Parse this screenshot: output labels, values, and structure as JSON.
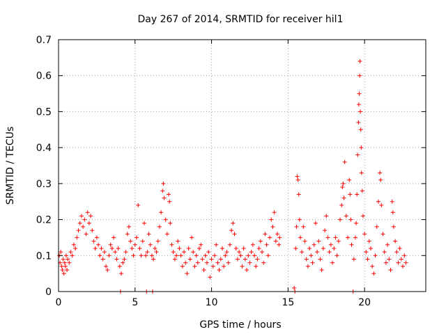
{
  "chart_data": {
    "type": "scatter",
    "title": "Day 267 of 2014, SRMTID for receiver hil1",
    "xlabel": "GPS time / hours",
    "ylabel": "SRMTID / TECUs",
    "xlim": [
      0,
      24
    ],
    "ylim": [
      0,
      0.7
    ],
    "xticks": [
      0,
      5,
      10,
      15,
      20
    ],
    "xtick_labels": [
      "0",
      "5",
      "10",
      "15",
      "20"
    ],
    "yticks": [
      0,
      0.1,
      0.2,
      0.3,
      0.4,
      0.5,
      0.6,
      0.7
    ],
    "ytick_labels": [
      "0",
      "0.1",
      "0.2",
      "0.3",
      "0.4",
      "0.5",
      "0.6",
      "0.7"
    ],
    "grid": true,
    "marker": "+",
    "series": [
      {
        "name": "SRMTID",
        "color": "#ff0000",
        "points": [
          [
            0.05,
            0.1
          ],
          [
            0.1,
            0.08
          ],
          [
            0.15,
            0.11
          ],
          [
            0.2,
            0.07
          ],
          [
            0.25,
            0.06
          ],
          [
            0.3,
            0.09
          ],
          [
            0.35,
            0.05
          ],
          [
            0.4,
            0.08
          ],
          [
            0.45,
            0.07
          ],
          [
            0.5,
            0.1
          ],
          [
            0.55,
            0.06
          ],
          [
            0.6,
            0.09
          ],
          [
            0.7,
            0.08
          ],
          [
            0.8,
            0.11
          ],
          [
            0.9,
            0.1
          ],
          [
            1.0,
            0.13
          ],
          [
            1.1,
            0.12
          ],
          [
            1.2,
            0.15
          ],
          [
            1.3,
            0.17
          ],
          [
            1.4,
            0.19
          ],
          [
            1.5,
            0.21
          ],
          [
            1.6,
            0.18
          ],
          [
            1.7,
            0.2
          ],
          [
            1.8,
            0.16
          ],
          [
            1.9,
            0.22
          ],
          [
            2.0,
            0.19
          ],
          [
            2.1,
            0.21
          ],
          [
            2.2,
            0.17
          ],
          [
            2.3,
            0.14
          ],
          [
            2.4,
            0.12
          ],
          [
            2.5,
            0.15
          ],
          [
            2.6,
            0.13
          ],
          [
            2.7,
            0.1
          ],
          [
            2.8,
            0.12
          ],
          [
            2.9,
            0.09
          ],
          [
            3.0,
            0.11
          ],
          [
            3.1,
            0.07
          ],
          [
            3.2,
            0.06
          ],
          [
            3.3,
            0.1
          ],
          [
            3.4,
            0.13
          ],
          [
            3.5,
            0.12
          ],
          [
            3.6,
            0.15
          ],
          [
            3.7,
            0.11
          ],
          [
            3.8,
            0.09
          ],
          [
            3.9,
            0.12
          ],
          [
            4.0,
            0.07
          ],
          [
            4.05,
            0.0
          ],
          [
            4.1,
            0.05
          ],
          [
            4.2,
            0.08
          ],
          [
            4.3,
            0.09
          ],
          [
            4.4,
            0.11
          ],
          [
            4.5,
            0.16
          ],
          [
            4.6,
            0.18
          ],
          [
            4.7,
            0.14
          ],
          [
            4.8,
            0.12
          ],
          [
            4.9,
            0.1
          ],
          [
            5.0,
            0.13
          ],
          [
            5.1,
            0.15
          ],
          [
            5.2,
            0.24
          ],
          [
            5.3,
            0.12
          ],
          [
            5.4,
            0.1
          ],
          [
            5.5,
            0.14
          ],
          [
            5.6,
            0.19
          ],
          [
            5.7,
            0.1
          ],
          [
            5.75,
            0.0
          ],
          [
            5.8,
            0.11
          ],
          [
            5.9,
            0.16
          ],
          [
            6.0,
            0.13
          ],
          [
            6.1,
            0.1
          ],
          [
            6.15,
            0.0
          ],
          [
            6.2,
            0.09
          ],
          [
            6.3,
            0.12
          ],
          [
            6.4,
            0.11
          ],
          [
            6.5,
            0.14
          ],
          [
            6.6,
            0.18
          ],
          [
            6.7,
            0.22
          ],
          [
            6.8,
            0.28
          ],
          [
            6.85,
            0.3
          ],
          [
            6.9,
            0.26
          ],
          [
            7.0,
            0.2
          ],
          [
            7.1,
            0.16
          ],
          [
            7.2,
            0.27
          ],
          [
            7.25,
            0.25
          ],
          [
            7.3,
            0.19
          ],
          [
            7.4,
            0.13
          ],
          [
            7.5,
            0.11
          ],
          [
            7.6,
            0.09
          ],
          [
            7.7,
            0.1
          ],
          [
            7.8,
            0.14
          ],
          [
            7.9,
            0.12
          ],
          [
            8.0,
            0.1
          ],
          [
            8.1,
            0.07
          ],
          [
            8.2,
            0.11
          ],
          [
            8.3,
            0.08
          ],
          [
            8.4,
            0.05
          ],
          [
            8.5,
            0.12
          ],
          [
            8.6,
            0.09
          ],
          [
            8.7,
            0.15
          ],
          [
            8.8,
            0.11
          ],
          [
            8.9,
            0.07
          ],
          [
            9.0,
            0.1
          ],
          [
            9.1,
            0.08
          ],
          [
            9.2,
            0.12
          ],
          [
            9.3,
            0.13
          ],
          [
            9.4,
            0.09
          ],
          [
            9.5,
            0.06
          ],
          [
            9.6,
            0.1
          ],
          [
            9.7,
            0.08
          ],
          [
            9.8,
            0.11
          ],
          [
            9.9,
            0.04
          ],
          [
            10.0,
            0.09
          ],
          [
            10.1,
            0.07
          ],
          [
            10.2,
            0.1
          ],
          [
            10.3,
            0.13
          ],
          [
            10.4,
            0.08
          ],
          [
            10.5,
            0.06
          ],
          [
            10.6,
            0.09
          ],
          [
            10.7,
            0.12
          ],
          [
            10.8,
            0.07
          ],
          [
            10.9,
            0.1
          ],
          [
            11.0,
            0.11
          ],
          [
            11.1,
            0.08
          ],
          [
            11.2,
            0.13
          ],
          [
            11.3,
            0.17
          ],
          [
            11.4,
            0.19
          ],
          [
            11.5,
            0.16
          ],
          [
            11.6,
            0.12
          ],
          [
            11.7,
            0.09
          ],
          [
            11.8,
            0.11
          ],
          [
            11.9,
            0.1
          ],
          [
            12.0,
            0.07
          ],
          [
            12.1,
            0.12
          ],
          [
            12.2,
            0.09
          ],
          [
            12.3,
            0.06
          ],
          [
            12.4,
            0.1
          ],
          [
            12.5,
            0.08
          ],
          [
            12.6,
            0.11
          ],
          [
            12.7,
            0.13
          ],
          [
            12.8,
            0.1
          ],
          [
            12.9,
            0.07
          ],
          [
            13.0,
            0.09
          ],
          [
            13.1,
            0.12
          ],
          [
            13.2,
            0.14
          ],
          [
            13.3,
            0.11
          ],
          [
            13.4,
            0.08
          ],
          [
            13.5,
            0.16
          ],
          [
            13.6,
            0.13
          ],
          [
            13.7,
            0.1
          ],
          [
            13.8,
            0.15
          ],
          [
            13.9,
            0.2
          ],
          [
            14.0,
            0.18
          ],
          [
            14.1,
            0.22
          ],
          [
            14.2,
            0.14
          ],
          [
            14.3,
            0.16
          ],
          [
            14.4,
            0.13
          ],
          [
            14.45,
            0.15
          ],
          [
            15.4,
            0.01
          ],
          [
            15.45,
            0.0
          ],
          [
            15.5,
            0.12
          ],
          [
            15.55,
            0.18
          ],
          [
            15.6,
            0.32
          ],
          [
            15.65,
            0.31
          ],
          [
            15.7,
            0.27
          ],
          [
            15.75,
            0.2
          ],
          [
            15.8,
            0.15
          ],
          [
            15.9,
            0.11
          ],
          [
            16.0,
            0.18
          ],
          [
            16.1,
            0.14
          ],
          [
            16.2,
            0.09
          ],
          [
            16.3,
            0.07
          ],
          [
            16.4,
            0.12
          ],
          [
            16.5,
            0.1
          ],
          [
            16.6,
            0.08
          ],
          [
            16.7,
            0.13
          ],
          [
            16.8,
            0.19
          ],
          [
            16.9,
            0.11
          ],
          [
            17.0,
            0.14
          ],
          [
            17.1,
            0.09
          ],
          [
            17.2,
            0.06
          ],
          [
            17.3,
            0.12
          ],
          [
            17.4,
            0.17
          ],
          [
            17.5,
            0.21
          ],
          [
            17.6,
            0.15
          ],
          [
            17.7,
            0.11
          ],
          [
            17.8,
            0.13
          ],
          [
            17.9,
            0.08
          ],
          [
            18.0,
            0.12
          ],
          [
            18.1,
            0.15
          ],
          [
            18.2,
            0.1
          ],
          [
            18.3,
            0.14
          ],
          [
            18.4,
            0.2
          ],
          [
            18.5,
            0.24
          ],
          [
            18.55,
            0.29
          ],
          [
            18.6,
            0.3
          ],
          [
            18.65,
            0.26
          ],
          [
            18.7,
            0.36
          ],
          [
            18.8,
            0.21
          ],
          [
            18.9,
            0.15
          ],
          [
            19.0,
            0.31
          ],
          [
            19.05,
            0.27
          ],
          [
            19.1,
            0.2
          ],
          [
            19.15,
            0.13
          ],
          [
            19.25,
            0.0
          ],
          [
            19.3,
            0.09
          ],
          [
            19.4,
            0.15
          ],
          [
            19.45,
            0.19
          ],
          [
            19.5,
            0.27
          ],
          [
            19.55,
            0.38
          ],
          [
            19.6,
            0.47
          ],
          [
            19.62,
            0.52
          ],
          [
            19.65,
            0.55
          ],
          [
            19.68,
            0.6
          ],
          [
            19.7,
            0.64
          ],
          [
            19.72,
            0.5
          ],
          [
            19.75,
            0.45
          ],
          [
            19.78,
            0.4
          ],
          [
            19.8,
            0.33
          ],
          [
            19.85,
            0.28
          ],
          [
            19.9,
            0.21
          ],
          [
            20.0,
            0.16
          ],
          [
            20.1,
            0.11
          ],
          [
            20.2,
            0.09
          ],
          [
            20.3,
            0.14
          ],
          [
            20.4,
            0.12
          ],
          [
            20.5,
            0.07
          ],
          [
            20.6,
            0.05
          ],
          [
            20.7,
            0.1
          ],
          [
            20.8,
            0.18
          ],
          [
            20.9,
            0.25
          ],
          [
            21.0,
            0.33
          ],
          [
            21.05,
            0.31
          ],
          [
            21.1,
            0.24
          ],
          [
            21.2,
            0.16
          ],
          [
            21.3,
            0.11
          ],
          [
            21.4,
            0.08
          ],
          [
            21.5,
            0.13
          ],
          [
            21.6,
            0.09
          ],
          [
            21.7,
            0.06
          ],
          [
            21.8,
            0.25
          ],
          [
            21.85,
            0.22
          ],
          [
            21.9,
            0.18
          ],
          [
            22.0,
            0.14
          ],
          [
            22.1,
            0.11
          ],
          [
            22.2,
            0.08
          ],
          [
            22.3,
            0.12
          ],
          [
            22.4,
            0.09
          ],
          [
            22.5,
            0.07
          ],
          [
            22.6,
            0.1
          ],
          [
            22.7,
            0.08
          ]
        ]
      }
    ]
  }
}
